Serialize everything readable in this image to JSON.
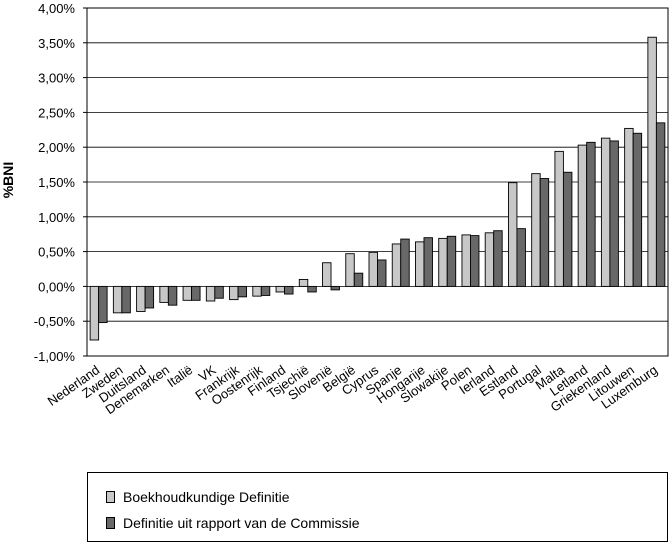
{
  "chart_data": {
    "type": "bar",
    "ylabel": "%BNI",
    "ylim": [
      -1.0,
      4.0
    ],
    "ytick_step": 0.5,
    "yticks": [
      "-1,00%",
      "-0,50%",
      "0,00%",
      "0,50%",
      "1,00%",
      "1,50%",
      "2,00%",
      "2,50%",
      "3,00%",
      "3,50%",
      "4,00%"
    ],
    "grid": true,
    "legend_position": "bottom",
    "categories": [
      "Nederland",
      "Zweden",
      "Duitsland",
      "Denemarken",
      "Italië",
      "VK",
      "Frankrijk",
      "Oostenrijk",
      "Finland",
      "Tsjechië",
      "Slovenië",
      "België",
      "Cyprus",
      "Spanje",
      "Hongarije",
      "Slowakije",
      "Polen",
      "Ierland",
      "Estland",
      "Portugal",
      "Malta",
      "Letland",
      "Griekenland",
      "Litouwen",
      "Luxemburg"
    ],
    "series": [
      {
        "name": "Boekhoudkundige Definitie",
        "color": "#c8c8c8",
        "values": [
          -0.77,
          -0.38,
          -0.36,
          -0.23,
          -0.2,
          -0.21,
          -0.19,
          -0.14,
          -0.08,
          0.1,
          0.34,
          0.47,
          0.49,
          0.61,
          0.64,
          0.69,
          0.74,
          0.77,
          1.49,
          1.62,
          1.94,
          2.03,
          2.13,
          2.27,
          3.58
        ]
      },
      {
        "name": "Definitie uit rapport van de Commissie",
        "color": "#686868",
        "values": [
          -0.52,
          -0.38,
          -0.31,
          -0.27,
          -0.2,
          -0.17,
          -0.15,
          -0.13,
          -0.11,
          -0.08,
          -0.05,
          0.19,
          0.38,
          0.68,
          0.7,
          0.72,
          0.73,
          0.8,
          0.83,
          1.55,
          1.64,
          2.07,
          2.09,
          2.2,
          2.35
        ]
      }
    ]
  }
}
